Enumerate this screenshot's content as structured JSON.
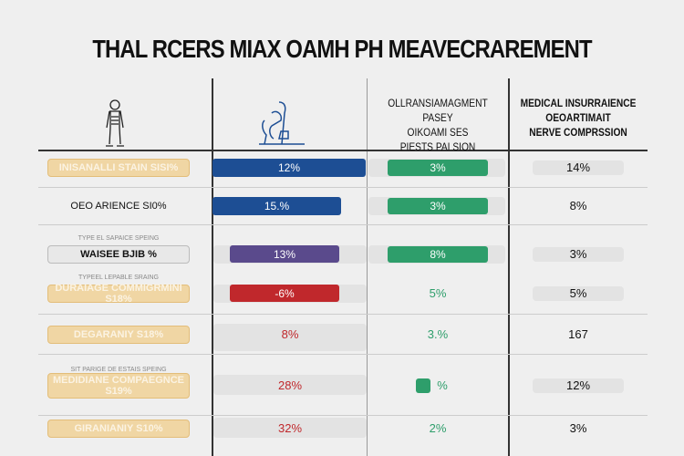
{
  "title": "THAL RCERS MIAX OAMH PH MEAVECRAREMENT",
  "headers": {
    "col3": [
      "OLLRANSIAMAGMENT PASEY",
      "OIKOAMI SES",
      "PIESTS PAI SION"
    ],
    "col4": [
      "MEDICAL INSURRAIENCE",
      "OEOARTIMAIT",
      "NERVE COMPRSSION"
    ]
  },
  "colors": {
    "blue": "#1d4e94",
    "green": "#2e9e6b",
    "purple": "#5a4a8c",
    "red": "#c0282c",
    "tan": "#f0d6a4"
  },
  "rows": [
    {
      "caption": "",
      "label": "INISANALLI STAIN SISI%",
      "style": "tan",
      "c2": "12%",
      "c2color": "#1d4e94",
      "c2fill": 1.0,
      "c3": "3%",
      "c3fill": true,
      "c4": "14%",
      "c4track": true
    },
    {
      "caption": "",
      "label": "OEO ARIENCE SI0%",
      "style": "plain",
      "c2": "15.%",
      "c2color": "#1d4e94",
      "c2fill": 0.84,
      "c3": "3%",
      "c3fill": true,
      "c4": "8%",
      "c4track": false
    },
    {
      "caption": "TYPE EL SAPAICE SPEING",
      "label": "WAISEE BJIB %",
      "style": "gray",
      "c2": "13%",
      "c2color": "#5a4a8c",
      "c2fill": 0.73,
      "c3": "8%",
      "c3fill": true,
      "c4": "3%",
      "c4track": true
    },
    {
      "caption": "TYPEEL LEPABLE SRAING",
      "label": "DURAIAGE COMMIGRMINI S18%",
      "style": "tan",
      "c2": "-6%",
      "c2color": "#c0282c",
      "c2fill": 0.73,
      "c3": "5%",
      "c3fill": false,
      "c4": "5%",
      "c4track": true
    },
    {
      "caption": "",
      "label": "DEGARANIY S18%",
      "style": "tan",
      "c2": "8%",
      "c2color": "",
      "c2fill": 0,
      "c3": "3.%",
      "c3fill": false,
      "c4": "167",
      "c4track": false
    },
    {
      "caption": "SIT PARIGE DE ESTAIS SPEING",
      "label": "MEDIDIANE COMPAEGNCE S19%",
      "style": "tan",
      "c2": "28%",
      "c2color": "",
      "c2fill": 0,
      "c3": "%",
      "c3fill": false,
      "c4": "12%",
      "c4track": true
    },
    {
      "caption": "",
      "label": "GIRANIANIY S10%",
      "style": "tan",
      "c2": "32%",
      "c2color": "",
      "c2fill": 0,
      "c3": "2%",
      "c3fill": false,
      "c4": "3%",
      "c4track": false
    }
  ]
}
